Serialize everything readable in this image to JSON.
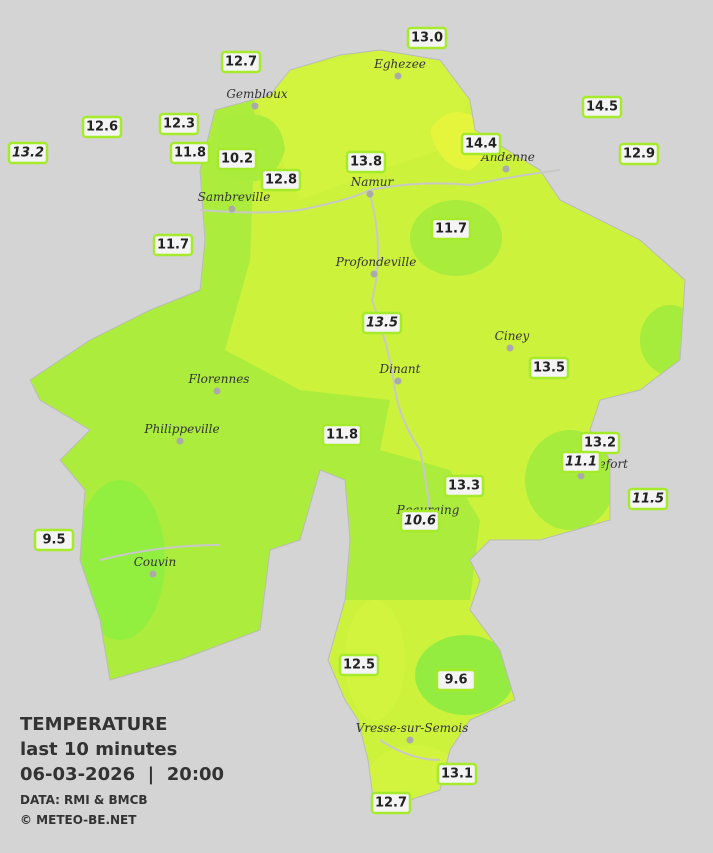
{
  "legend": {
    "title": "TEMPERATURE",
    "period": "last 10 minutes",
    "datetime": "06-03-2026  |  20:00",
    "source": "DATA: RMI & BMCB",
    "copyright": "© METEO-BE.NET"
  },
  "cities": [
    "Eghezee",
    "Gembloux",
    "Andenne",
    "Namur",
    "Sambreville",
    "Profondeville",
    "Ciney",
    "Dinant",
    "Florennes",
    "Philippeville",
    "Rochefort",
    "Beauraing",
    "Couvin",
    "Vresse-sur-Semois"
  ],
  "stations": [
    {
      "label": "13.0",
      "italic": false
    },
    {
      "label": "12.7",
      "italic": false
    },
    {
      "label": "14.5",
      "italic": false
    },
    {
      "label": "12.6",
      "italic": false
    },
    {
      "label": "12.3",
      "italic": false
    },
    {
      "label": "13.2",
      "italic": true
    },
    {
      "label": "11.8",
      "italic": false
    },
    {
      "label": "10.2",
      "italic": false
    },
    {
      "label": "12.8",
      "italic": false
    },
    {
      "label": "13.8",
      "italic": false
    },
    {
      "label": "14.4",
      "italic": false
    },
    {
      "label": "12.9",
      "italic": false
    },
    {
      "label": "11.7",
      "italic": false
    },
    {
      "label": "11.7",
      "italic": false
    },
    {
      "label": "13.5",
      "italic": true
    },
    {
      "label": "13.5",
      "italic": false
    },
    {
      "label": "11.8",
      "italic": false
    },
    {
      "label": "13.2",
      "italic": false
    },
    {
      "label": "11.1",
      "italic": true
    },
    {
      "label": "11.5",
      "italic": true
    },
    {
      "label": "13.3",
      "italic": false
    },
    {
      "label": "10.6",
      "italic": true
    },
    {
      "label": "9.5",
      "italic": false
    },
    {
      "label": "12.5",
      "italic": false
    },
    {
      "label": "9.6",
      "italic": false
    },
    {
      "label": "13.1",
      "italic": false
    },
    {
      "label": "12.7",
      "italic": false
    }
  ]
}
